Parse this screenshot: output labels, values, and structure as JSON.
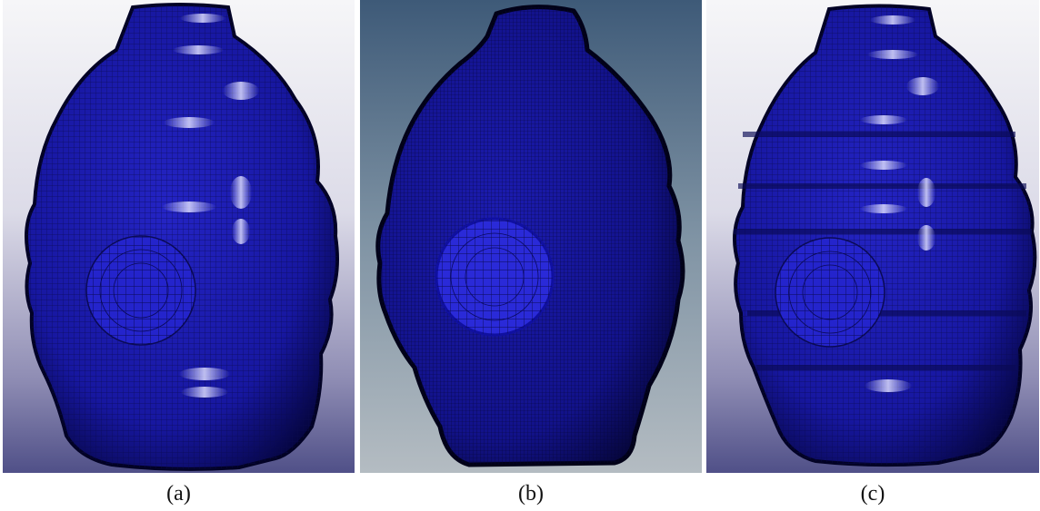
{
  "panels": [
    {
      "label": "(a)",
      "mesh_color": "#1f1fb8",
      "background": "light-gradient"
    },
    {
      "label": "(b)",
      "mesh_color": "#1a1aa0",
      "background": "steel-gradient"
    },
    {
      "label": "(c)",
      "mesh_color": "#1f1fb8",
      "background": "light-gradient"
    }
  ],
  "colors": {
    "mesh_dark": "#0d0d5e",
    "mesh_mid": "#1e1eb0",
    "patch": "#2a2ad6",
    "highlight": "#c8c8ff"
  }
}
